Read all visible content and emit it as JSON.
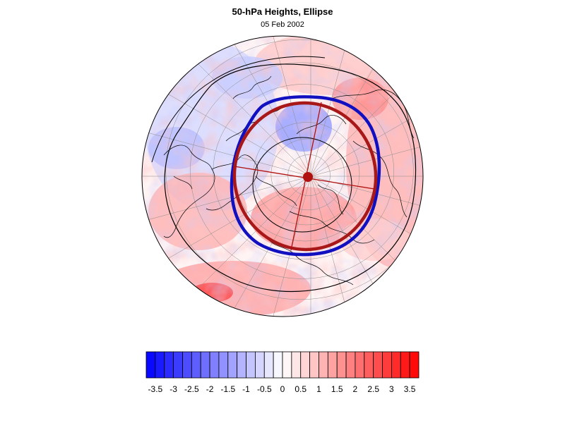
{
  "title": "50-hPa Heights, Ellipse",
  "subtitle": "05 Feb 2002",
  "colorbar": {
    "tick_labels": [
      "-3.5",
      "-3",
      "-2.5",
      "-2",
      "-1.5",
      "-1",
      "-0.5",
      "0",
      "0.5",
      "1",
      "1.5",
      "2",
      "2.5",
      "3",
      "3.5"
    ],
    "min": -3.75,
    "max": 3.75,
    "step": 0.25,
    "negative_color": "#0000ff",
    "positive_color": "#ff0000"
  },
  "map": {
    "projection": "polar-orthographic-north",
    "background_color": "#ffffff",
    "overlay_colors": {
      "contour": "#000000",
      "observed_edge": "#1010c0",
      "fitted_ellipse": "#a81818",
      "ellipse_axes": "#b01010",
      "ellipse_center": "#b01010",
      "grid": "#8c8c8c",
      "coastline": "#000000"
    }
  }
}
